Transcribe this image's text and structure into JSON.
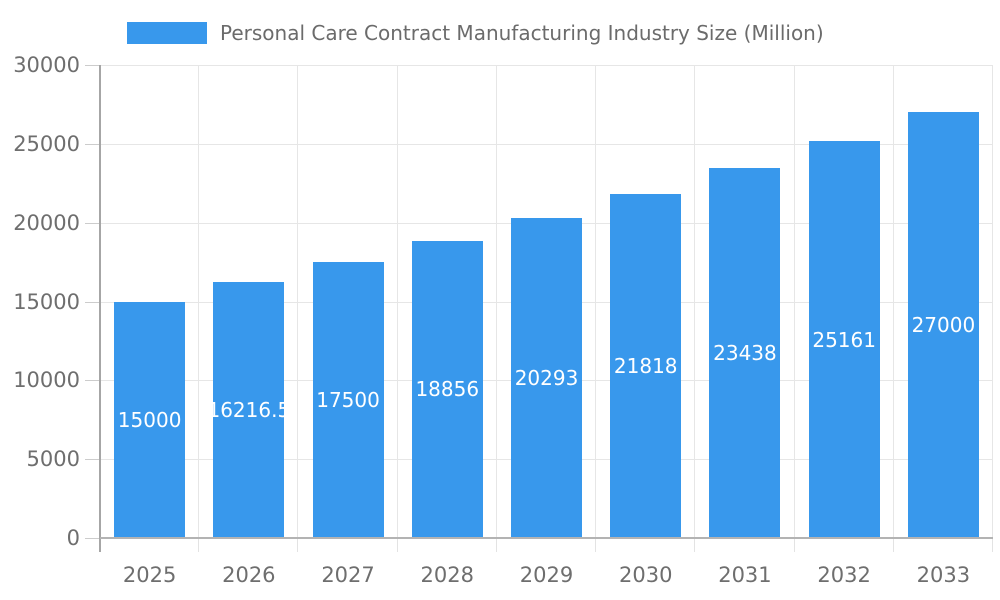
{
  "legend": {
    "label": "Personal Care Contract Manufacturing Industry Size (Million)"
  },
  "colors": {
    "bar": "#3898EC",
    "grid": "#e6e6e6",
    "axis_y": "#a6a6a6",
    "axis_x": "#b3b3b3",
    "y_tick_mark": "#cccccc",
    "x_tick_mark": "#e3e3e3",
    "tick_text": "#6e6e6e",
    "legend_text": "#6b6b6b",
    "value_label_text": "#ffffff",
    "background": "#ffffff"
  },
  "chart_data": {
    "type": "bar",
    "title": "Personal Care Contract Manufacturing Industry Size (Million)",
    "categories": [
      "2025",
      "2026",
      "2027",
      "2028",
      "2029",
      "2030",
      "2031",
      "2032",
      "2033"
    ],
    "values": [
      15000,
      16216.5,
      17500,
      18856,
      20293,
      21818,
      23438,
      25161,
      27000
    ],
    "value_labels": [
      "15000",
      "16216.5",
      "17500",
      "18856",
      "20293",
      "21818",
      "23438",
      "25161",
      "27000"
    ],
    "xlabel": "",
    "ylabel": "",
    "ylim": [
      0,
      30000
    ],
    "yticks": [
      0,
      5000,
      10000,
      15000,
      20000,
      25000,
      30000
    ],
    "ytick_labels": [
      "0",
      "5000",
      "10000",
      "15000",
      "20000",
      "25000",
      "30000"
    ],
    "grid": true,
    "legend_position": "top-left",
    "bar_label_position": "inside-center"
  }
}
